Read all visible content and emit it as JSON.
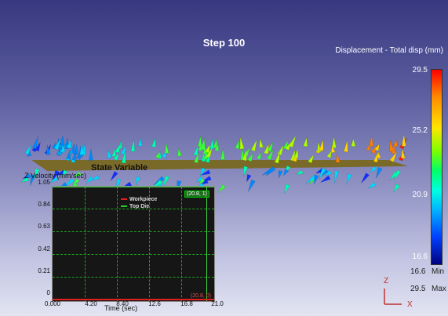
{
  "viewport": {
    "step_title": "Step  100",
    "legend_title": "Displacement - Total disp (mm)",
    "colorbar_labels": [
      "29.5",
      "25.2",
      "20.9",
      "16.6"
    ],
    "min_value": "16.6",
    "min_label": "Min",
    "max_value": "29.5",
    "max_label": "Max"
  },
  "graph": {
    "state_variable_label": "State Variable",
    "y_axis_title": "Z Velocity (mm/sec)",
    "x_axis_title": "Time (sec)",
    "y_ticks": [
      "1.05",
      "0.84",
      "0.63",
      "0.42",
      "0.21",
      "0"
    ],
    "x_ticks": [
      "0.000",
      "4.20",
      "8.40",
      "12.6",
      "16.8",
      "21.0"
    ],
    "legend": [
      {
        "label": "Workpiece",
        "color": "#e02020"
      },
      {
        "label": "Top Die",
        "color": "#20d020"
      }
    ],
    "marker_top": "(20.8, 1)",
    "marker_bottom": "(20.8, 0)"
  },
  "triad": {
    "z_label": "Z",
    "x_label": "X"
  },
  "colors": {
    "background_top": "#37387f",
    "background_bottom": "#e3e4f2",
    "graph_background": "#161616",
    "grid": "#1fa21f"
  }
}
